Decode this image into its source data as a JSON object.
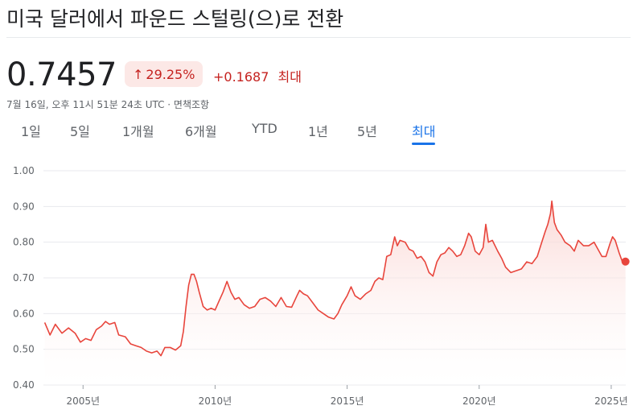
{
  "header": {
    "title": "미국 달러에서 파운드 스털링(으)로 전환",
    "price": "0.7457",
    "change_pct": "29.25%",
    "change_arrow": "↑",
    "change_abs": "+0.1687",
    "change_period": "최대",
    "timestamp": "7월 16일, 오후 11시 51분 24초 UTC · 면책조항"
  },
  "tabs": [
    {
      "label": "1일",
      "active": false
    },
    {
      "label": "5일",
      "active": false
    },
    {
      "label": "1개월",
      "active": false
    },
    {
      "label": "6개월",
      "active": false
    },
    {
      "label": "YTD",
      "active": false
    },
    {
      "label": "1년",
      "active": false
    },
    {
      "label": "5년",
      "active": false
    },
    {
      "label": "최대",
      "active": true
    }
  ],
  "colors": {
    "line": "#e8453c",
    "fill_top": "#fad2cf",
    "grid": "#e8eaed",
    "active_tab": "#1a73e8",
    "negative": "#c5221f"
  },
  "chart_data": {
    "type": "area",
    "title": "",
    "xlabel": "",
    "ylabel": "",
    "ylim": [
      0.4,
      1.0
    ],
    "yticks": [
      "1.00",
      "0.90",
      "0.80",
      "0.70",
      "0.60",
      "0.50",
      "0.40"
    ],
    "xlim": [
      2003.5,
      2025.55
    ],
    "xticks": [
      {
        "year": 2005,
        "label": "2005년"
      },
      {
        "year": 2010,
        "label": "2010년"
      },
      {
        "year": 2015,
        "label": "2015년"
      },
      {
        "year": 2020,
        "label": "2020년"
      },
      {
        "year": 2025,
        "label": "2025년"
      }
    ],
    "grid": true,
    "series": [
      {
        "values": [
          [
            2003.55,
            0.575
          ],
          [
            2003.75,
            0.54
          ],
          [
            2003.95,
            0.57
          ],
          [
            2004.2,
            0.545
          ],
          [
            2004.45,
            0.56
          ],
          [
            2004.7,
            0.545
          ],
          [
            2004.9,
            0.52
          ],
          [
            2005.1,
            0.53
          ],
          [
            2005.3,
            0.525
          ],
          [
            2005.5,
            0.555
          ],
          [
            2005.7,
            0.565
          ],
          [
            2005.85,
            0.578
          ],
          [
            2006.0,
            0.57
          ],
          [
            2006.2,
            0.575
          ],
          [
            2006.35,
            0.54
          ],
          [
            2006.6,
            0.535
          ],
          [
            2006.8,
            0.515
          ],
          [
            2007.0,
            0.51
          ],
          [
            2007.2,
            0.505
          ],
          [
            2007.4,
            0.495
          ],
          [
            2007.6,
            0.49
          ],
          [
            2007.8,
            0.495
          ],
          [
            2007.95,
            0.482
          ],
          [
            2008.1,
            0.505
          ],
          [
            2008.3,
            0.505
          ],
          [
            2008.5,
            0.498
          ],
          [
            2008.7,
            0.51
          ],
          [
            2008.8,
            0.55
          ],
          [
            2008.9,
            0.62
          ],
          [
            2009.0,
            0.68
          ],
          [
            2009.1,
            0.71
          ],
          [
            2009.2,
            0.71
          ],
          [
            2009.3,
            0.69
          ],
          [
            2009.4,
            0.66
          ],
          [
            2009.55,
            0.62
          ],
          [
            2009.7,
            0.61
          ],
          [
            2009.85,
            0.615
          ],
          [
            2010.0,
            0.61
          ],
          [
            2010.15,
            0.635
          ],
          [
            2010.3,
            0.66
          ],
          [
            2010.45,
            0.69
          ],
          [
            2010.6,
            0.66
          ],
          [
            2010.75,
            0.64
          ],
          [
            2010.9,
            0.645
          ],
          [
            2011.1,
            0.625
          ],
          [
            2011.3,
            0.615
          ],
          [
            2011.5,
            0.62
          ],
          [
            2011.7,
            0.64
          ],
          [
            2011.9,
            0.645
          ],
          [
            2012.1,
            0.635
          ],
          [
            2012.3,
            0.62
          ],
          [
            2012.5,
            0.645
          ],
          [
            2012.7,
            0.62
          ],
          [
            2012.9,
            0.618
          ],
          [
            2013.1,
            0.65
          ],
          [
            2013.2,
            0.665
          ],
          [
            2013.35,
            0.655
          ],
          [
            2013.5,
            0.65
          ],
          [
            2013.7,
            0.63
          ],
          [
            2013.9,
            0.61
          ],
          [
            2014.1,
            0.6
          ],
          [
            2014.3,
            0.59
          ],
          [
            2014.5,
            0.585
          ],
          [
            2014.65,
            0.6
          ],
          [
            2014.8,
            0.625
          ],
          [
            2015.0,
            0.65
          ],
          [
            2015.15,
            0.675
          ],
          [
            2015.3,
            0.65
          ],
          [
            2015.5,
            0.64
          ],
          [
            2015.7,
            0.655
          ],
          [
            2015.9,
            0.665
          ],
          [
            2016.05,
            0.69
          ],
          [
            2016.2,
            0.7
          ],
          [
            2016.35,
            0.695
          ],
          [
            2016.5,
            0.76
          ],
          [
            2016.65,
            0.765
          ],
          [
            2016.8,
            0.815
          ],
          [
            2016.9,
            0.79
          ],
          [
            2017.0,
            0.805
          ],
          [
            2017.2,
            0.8
          ],
          [
            2017.35,
            0.78
          ],
          [
            2017.5,
            0.775
          ],
          [
            2017.65,
            0.755
          ],
          [
            2017.8,
            0.76
          ],
          [
            2017.95,
            0.745
          ],
          [
            2018.1,
            0.715
          ],
          [
            2018.25,
            0.705
          ],
          [
            2018.4,
            0.745
          ],
          [
            2018.55,
            0.765
          ],
          [
            2018.7,
            0.77
          ],
          [
            2018.85,
            0.785
          ],
          [
            2019.0,
            0.775
          ],
          [
            2019.15,
            0.76
          ],
          [
            2019.3,
            0.765
          ],
          [
            2019.45,
            0.79
          ],
          [
            2019.6,
            0.825
          ],
          [
            2019.7,
            0.815
          ],
          [
            2019.85,
            0.775
          ],
          [
            2020.0,
            0.765
          ],
          [
            2020.15,
            0.785
          ],
          [
            2020.25,
            0.85
          ],
          [
            2020.35,
            0.8
          ],
          [
            2020.5,
            0.805
          ],
          [
            2020.7,
            0.775
          ],
          [
            2020.85,
            0.755
          ],
          [
            2021.0,
            0.73
          ],
          [
            2021.2,
            0.715
          ],
          [
            2021.4,
            0.72
          ],
          [
            2021.6,
            0.725
          ],
          [
            2021.8,
            0.745
          ],
          [
            2022.0,
            0.74
          ],
          [
            2022.2,
            0.76
          ],
          [
            2022.35,
            0.795
          ],
          [
            2022.5,
            0.83
          ],
          [
            2022.6,
            0.85
          ],
          [
            2022.7,
            0.88
          ],
          [
            2022.75,
            0.915
          ],
          [
            2022.85,
            0.855
          ],
          [
            2022.95,
            0.835
          ],
          [
            2023.1,
            0.82
          ],
          [
            2023.25,
            0.8
          ],
          [
            2023.45,
            0.79
          ],
          [
            2023.6,
            0.775
          ],
          [
            2023.75,
            0.805
          ],
          [
            2023.95,
            0.79
          ],
          [
            2024.15,
            0.79
          ],
          [
            2024.35,
            0.8
          ],
          [
            2024.5,
            0.78
          ],
          [
            2024.65,
            0.76
          ],
          [
            2024.8,
            0.76
          ],
          [
            2024.95,
            0.795
          ],
          [
            2025.05,
            0.815
          ],
          [
            2025.15,
            0.805
          ],
          [
            2025.3,
            0.77
          ],
          [
            2025.45,
            0.74
          ],
          [
            2025.54,
            0.7457
          ]
        ]
      }
    ]
  }
}
